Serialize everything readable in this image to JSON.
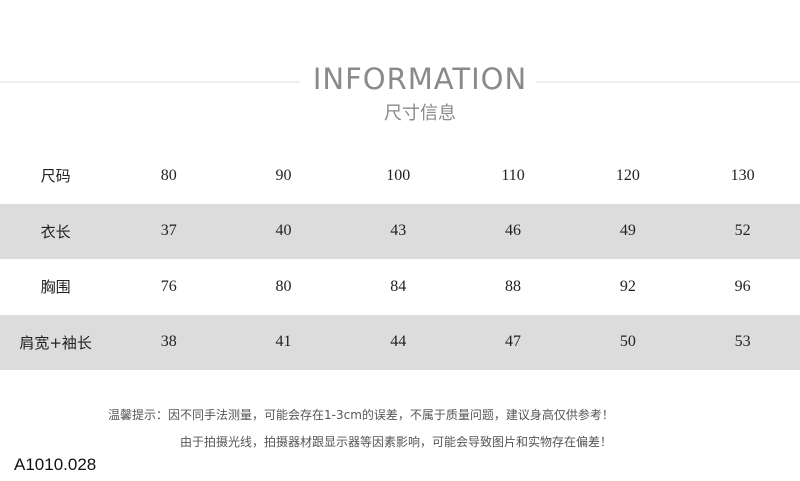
{
  "header": {
    "title": "INFORMATION",
    "subtitle": "尺寸信息"
  },
  "table": {
    "rows": [
      {
        "label": "尺码",
        "values": [
          "80",
          "90",
          "100",
          "110",
          "120",
          "130"
        ]
      },
      {
        "label": "衣长",
        "values": [
          "37",
          "40",
          "43",
          "46",
          "49",
          "52"
        ]
      },
      {
        "label": "胸围",
        "values": [
          "76",
          "80",
          "84",
          "88",
          "92",
          "96"
        ]
      },
      {
        "label": "肩宽+袖长",
        "values": [
          "38",
          "41",
          "44",
          "47",
          "50",
          "53"
        ]
      }
    ]
  },
  "notes": {
    "line1": "温馨提示：因不同手法测量，可能会存在1-3cm的误差，不属于质量问题，建议身高仅供参考！",
    "line2": "由于拍摄光线，拍摄器材跟显示器等因素影响，可能会导致图片和实物存在偏差！"
  },
  "product_code": "A1010.028",
  "colors": {
    "stripe": "#dcdcdc",
    "title": "#8a8a8a"
  }
}
